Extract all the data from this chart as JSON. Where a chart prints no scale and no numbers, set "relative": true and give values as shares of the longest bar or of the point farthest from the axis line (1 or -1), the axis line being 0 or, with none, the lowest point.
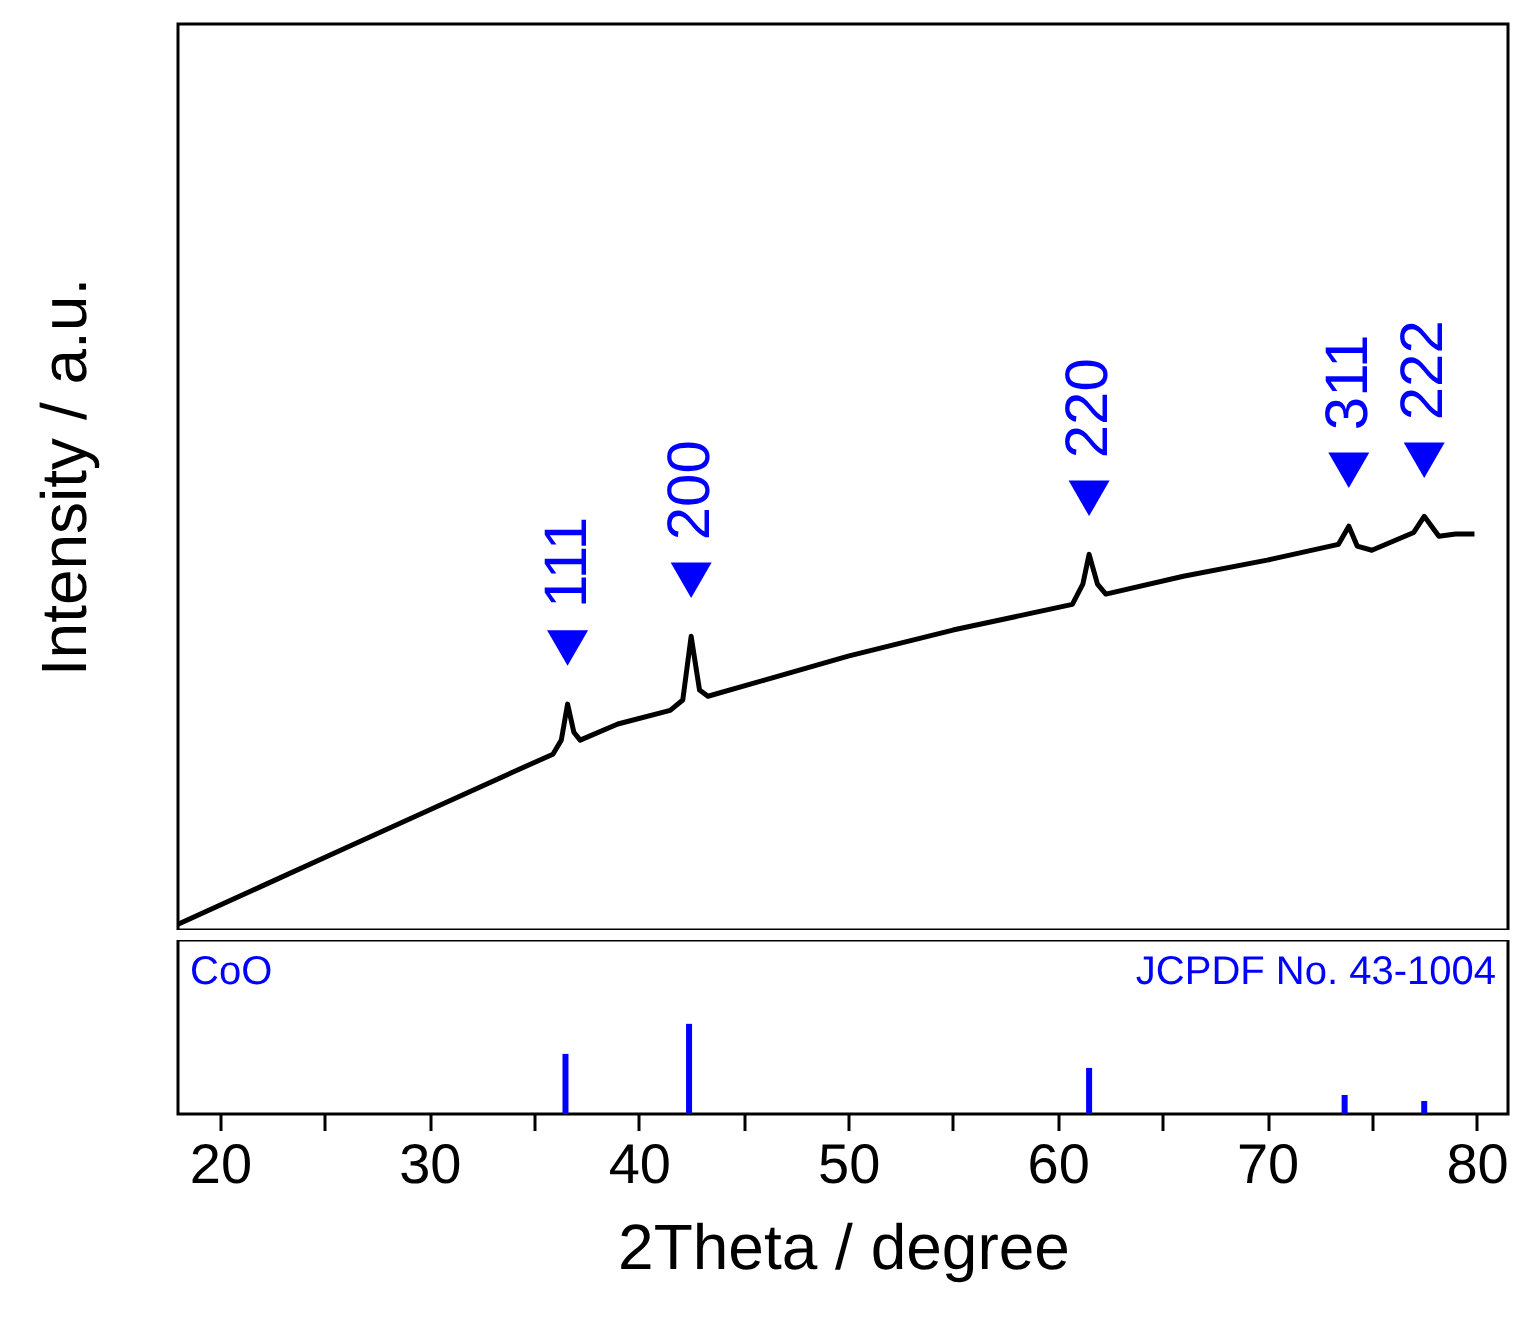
{
  "chart_data": [
    {
      "type": "line",
      "relative": true,
      "ylabel": "Intensity / a.u.",
      "xlim": [
        18,
        81.5
      ],
      "tick_labels": false,
      "x": [
        18,
        22,
        26,
        30,
        34,
        35.9,
        36.3,
        36.6,
        36.9,
        37.2,
        39,
        41.5,
        42.1,
        42.5,
        42.9,
        43.3,
        46,
        50,
        55,
        60.7,
        61.2,
        61.5,
        61.9,
        62.3,
        66,
        70,
        73.4,
        73.9,
        74.3,
        75,
        77,
        77.5,
        78.2,
        79,
        79.9
      ],
      "series": [
        {
          "color": "#000000",
          "values": [
            0.014,
            0.106,
            0.198,
            0.29,
            0.382,
            0.425,
            0.459,
            0.546,
            0.478,
            0.459,
            0.498,
            0.531,
            0.556,
            0.71,
            0.58,
            0.565,
            0.604,
            0.662,
            0.725,
            0.787,
            0.836,
            0.908,
            0.836,
            0.812,
            0.855,
            0.894,
            0.932,
            0.976,
            0.928,
            0.918,
            0.961,
            1.0,
            0.952,
            0.957,
            0.957
          ]
        }
      ],
      "annotations": [
        {
          "text": "111",
          "x": 36.6,
          "y": 0.546
        },
        {
          "text": "200",
          "x": 42.5,
          "y": 0.71
        },
        {
          "text": "220",
          "x": 61.5,
          "y": 0.908
        },
        {
          "text": "311",
          "x": 73.9,
          "y": 0.976
        },
        {
          "text": "222",
          "x": 77.5,
          "y": 1.0
        }
      ]
    },
    {
      "type": "bar",
      "relative": true,
      "xlabel": "2Theta / degree",
      "xlim": [
        18,
        81.5
      ],
      "tick_labels": "x",
      "xticks": [
        20,
        {
          "value": 25,
          "label": null
        },
        30,
        {
          "value": 35,
          "label": null
        },
        40,
        {
          "value": 45,
          "label": null
        },
        50,
        {
          "value": 55,
          "label": null
        },
        60,
        {
          "value": 65,
          "label": null
        },
        70,
        {
          "value": 75,
          "label": null
        },
        80
      ],
      "x": [
        36.5,
        42.4,
        61.5,
        73.7,
        77.5
      ],
      "series": [
        {
          "color": "#0000ff",
          "values": [
            0.667,
            1.0,
            0.511,
            0.211,
            0.144
          ]
        }
      ],
      "annotations": [
        "CoO",
        "JCPDF No. 43-1004"
      ]
    }
  ]
}
